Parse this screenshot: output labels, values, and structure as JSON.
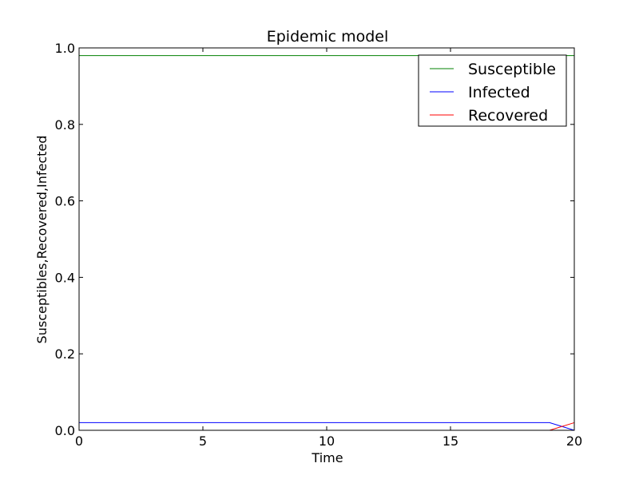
{
  "chart_data": {
    "type": "line",
    "title": "Epidemic model",
    "xlabel": "Time",
    "ylabel": "Susceptibles,Recovered,Infected",
    "xlim": [
      0,
      20
    ],
    "ylim": [
      0.0,
      1.0
    ],
    "x_ticks": [
      0,
      5,
      10,
      15,
      20
    ],
    "x_tick_labels": [
      "0",
      "5",
      "10",
      "15",
      "20"
    ],
    "y_ticks": [
      0.0,
      0.2,
      0.4,
      0.6,
      0.8,
      1.0
    ],
    "y_tick_labels": [
      "0.0",
      "0.2",
      "0.4",
      "0.6",
      "0.8",
      "1.0"
    ],
    "grid": false,
    "legend_position": "top-right",
    "series": [
      {
        "name": "Susceptible",
        "color": "#008000",
        "x": [
          0,
          19,
          20
        ],
        "y": [
          0.98,
          0.98,
          0.98
        ]
      },
      {
        "name": "Infected",
        "color": "#0000ff",
        "x": [
          0,
          19,
          20
        ],
        "y": [
          0.02,
          0.02,
          0.0
        ]
      },
      {
        "name": "Recovered",
        "color": "#ff0000",
        "x": [
          0,
          19,
          20
        ],
        "y": [
          0.0,
          0.0,
          0.02
        ]
      }
    ]
  }
}
